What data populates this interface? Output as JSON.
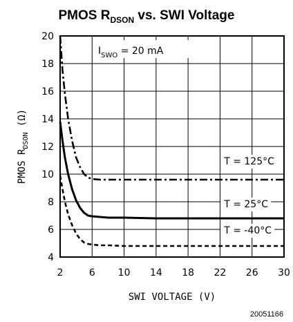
{
  "chart_data": {
    "type": "line",
    "title": {
      "main": "PMOS R",
      "sub": "DSON",
      "rest": " vs. SWI Voltage"
    },
    "xlabel": "SWI VOLTAGE (V)",
    "ylabel": {
      "pre": "PMOS R",
      "sub": "DSON",
      "post": " (Ω)"
    },
    "xlim": [
      2,
      30
    ],
    "ylim": [
      4,
      20
    ],
    "xticks": [
      2,
      6,
      10,
      14,
      18,
      22,
      26,
      30
    ],
    "yticks": [
      4,
      6,
      8,
      10,
      12,
      14,
      16,
      18,
      20
    ],
    "grid": true,
    "condition": {
      "pre": "I",
      "sub": "SWO",
      "post": " = 20 mA"
    },
    "series": [
      {
        "name": "T = 125°C",
        "style": "dash-dot",
        "x": [
          2.0,
          2.3,
          2.6,
          3.0,
          3.5,
          4.0,
          4.5,
          5.0,
          5.5,
          6.0,
          7.0,
          8.0,
          10.0,
          14.0,
          18.0,
          22.0,
          26.0,
          30.0
        ],
        "values": [
          20.0,
          17.5,
          15.8,
          14.0,
          12.4,
          11.2,
          10.5,
          10.0,
          9.75,
          9.65,
          9.6,
          9.6,
          9.6,
          9.6,
          9.6,
          9.6,
          9.6,
          9.6
        ]
      },
      {
        "name": "T = 25°C",
        "style": "solid",
        "x": [
          2.0,
          2.3,
          2.6,
          3.0,
          3.5,
          4.0,
          4.5,
          5.0,
          5.5,
          6.0,
          7.0,
          8.0,
          10.0,
          14.0,
          18.0,
          22.0,
          26.0,
          30.0
        ],
        "values": [
          13.8,
          12.4,
          11.2,
          10.0,
          8.9,
          8.1,
          7.55,
          7.2,
          7.0,
          6.95,
          6.9,
          6.85,
          6.85,
          6.8,
          6.8,
          6.8,
          6.8,
          6.8
        ]
      },
      {
        "name": "T = -40°C",
        "style": "dashed",
        "x": [
          2.0,
          2.3,
          2.6,
          3.0,
          3.5,
          4.0,
          4.5,
          5.0,
          5.5,
          6.0,
          7.0,
          8.0,
          10.0,
          14.0,
          18.0,
          22.0,
          26.0,
          30.0
        ],
        "values": [
          9.9,
          8.9,
          8.0,
          7.1,
          6.3,
          5.7,
          5.3,
          5.05,
          4.95,
          4.9,
          4.85,
          4.85,
          4.8,
          4.8,
          4.8,
          4.8,
          4.8,
          4.8
        ]
      }
    ],
    "annotations": [
      {
        "text": "T = 125°C",
        "x": 22.5,
        "y": 10.7
      },
      {
        "text": "T = 25°C",
        "x": 22.5,
        "y": 7.6
      },
      {
        "text": "T = -40°C",
        "x": 22.5,
        "y": 5.7
      }
    ]
  },
  "figure_id": "20051166"
}
